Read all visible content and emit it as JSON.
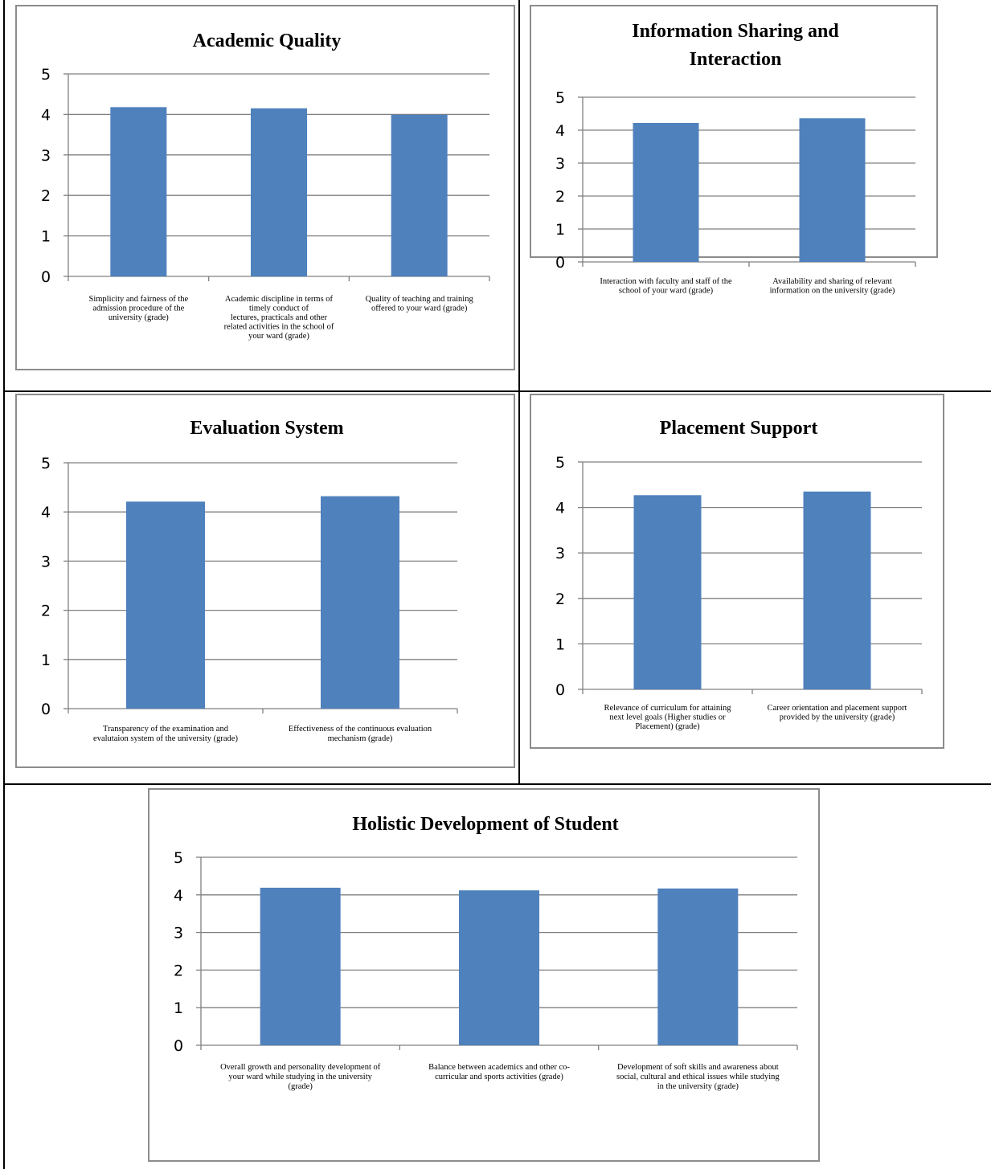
{
  "chart_data": [
    {
      "type": "bar",
      "title": [
        "Academic Quality"
      ],
      "categories": [
        [
          "Simplicity and fairness of the",
          "admission procedure of the",
          "university (grade)"
        ],
        [
          "Academic discipline in terms of",
          "timely conduct of",
          "lectures, practicals and other",
          "related activities in the school of",
          "your ward (grade)"
        ],
        [
          "Quality of teaching and training",
          "offered to your ward (grade)"
        ]
      ],
      "values": [
        4.18,
        4.15,
        3.99
      ],
      "ylim": [
        0,
        5
      ],
      "yticks": [
        "0",
        "1",
        "2",
        "3",
        "4",
        "5"
      ],
      "grid": true,
      "bar_color": "#4f81bd"
    },
    {
      "type": "bar",
      "title": [
        "Information Sharing and",
        "Interaction"
      ],
      "categories": [
        [
          "Interaction with faculty and staff of the",
          "school of your ward (grade)"
        ],
        [
          "Availability and sharing of relevant",
          "information on the university (grade)"
        ]
      ],
      "values": [
        4.22,
        4.36
      ],
      "ylim": [
        0,
        5
      ],
      "yticks": [
        "0",
        "1",
        "2",
        "3",
        "4",
        "5"
      ],
      "grid": true,
      "bar_color": "#4f81bd"
    },
    {
      "type": "bar",
      "title": [
        "Evaluation System"
      ],
      "categories": [
        [
          "Transparency of the examination and",
          "evalutaion system of the university (grade)"
        ],
        [
          "Effectiveness of the continuous evaluation",
          "mechanism (grade)"
        ]
      ],
      "values": [
        4.21,
        4.32
      ],
      "ylim": [
        0,
        5
      ],
      "yticks": [
        "0",
        "1",
        "2",
        "3",
        "4",
        "5"
      ],
      "grid": true,
      "bar_color": "#4f81bd"
    },
    {
      "type": "bar",
      "title": [
        "Placement Support"
      ],
      "categories": [
        [
          "Relevance of curriculum for attaining",
          "next level goals (Higher studies or",
          "Placement) (grade)"
        ],
        [
          "Career orientation and placement support",
          "provided by the university (grade)"
        ]
      ],
      "values": [
        4.27,
        4.35
      ],
      "ylim": [
        0,
        5
      ],
      "yticks": [
        "0",
        "1",
        "2",
        "3",
        "4",
        "5"
      ],
      "grid": true,
      "bar_color": "#4f81bd"
    },
    {
      "type": "bar",
      "title": [
        "Holistic Development of Student"
      ],
      "categories": [
        [
          "Overall growth and personality development of",
          "your ward while studying in the university",
          "(grade)"
        ],
        [
          "Balance between academics and other co-",
          "curricular and sports activities (grade)"
        ],
        [
          "Development of soft skills and awareness about",
          "social, cultural and ethical issues while studying",
          "in the university (grade)"
        ]
      ],
      "values": [
        4.19,
        4.12,
        4.17
      ],
      "ylim": [
        0,
        5
      ],
      "yticks": [
        "0",
        "1",
        "2",
        "3",
        "4",
        "5"
      ],
      "grid": true,
      "bar_color": "#4f81bd"
    }
  ]
}
